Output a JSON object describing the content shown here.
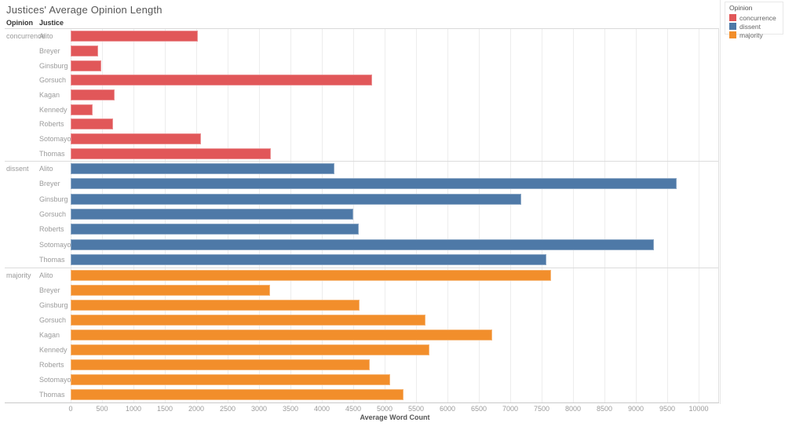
{
  "title": "Justices' Average Opinion Length",
  "row_headers": {
    "opinion": "Opinion",
    "justice": "Justice"
  },
  "legend": {
    "title": "Opinion",
    "items": [
      {
        "label": "concurrence",
        "color": "#e15759"
      },
      {
        "label": "dissent",
        "color": "#4e79a7"
      },
      {
        "label": "majority",
        "color": "#f28e2b"
      }
    ]
  },
  "axis": {
    "label": "Average Word Count",
    "ticks": [
      0,
      500,
      1000,
      1500,
      2000,
      2500,
      3000,
      3500,
      4000,
      4500,
      5000,
      5500,
      6000,
      6500,
      7000,
      7500,
      8000,
      8500,
      9000,
      9500,
      10000
    ]
  },
  "chart_data": {
    "type": "bar",
    "orientation": "horizontal",
    "title": "Justices' Average Opinion Length",
    "xlabel": "Average Word Count",
    "xlim": [
      0,
      10325
    ],
    "grid": true,
    "legend_position": "top-right",
    "series": [
      {
        "name": "concurrence",
        "color": "#e15759",
        "points": [
          {
            "justice": "Alito",
            "value": 2030
          },
          {
            "justice": "Breyer",
            "value": 440
          },
          {
            "justice": "Ginsburg",
            "value": 490
          },
          {
            "justice": "Gorsuch",
            "value": 4800
          },
          {
            "justice": "Kagan",
            "value": 700
          },
          {
            "justice": "Kennedy",
            "value": 350
          },
          {
            "justice": "Roberts",
            "value": 680
          },
          {
            "justice": "Sotomayor",
            "value": 2070
          },
          {
            "justice": "Thomas",
            "value": 3190
          }
        ]
      },
      {
        "name": "dissent",
        "color": "#4e79a7",
        "points": [
          {
            "justice": "Alito",
            "value": 4200
          },
          {
            "justice": "Breyer",
            "value": 9650
          },
          {
            "justice": "Ginsburg",
            "value": 7175
          },
          {
            "justice": "Gorsuch",
            "value": 4500
          },
          {
            "justice": "Roberts",
            "value": 4590
          },
          {
            "justice": "Sotomayor",
            "value": 9290
          },
          {
            "justice": "Thomas",
            "value": 7580
          }
        ]
      },
      {
        "name": "majority",
        "color": "#f28e2b",
        "points": [
          {
            "justice": "Alito",
            "value": 7645
          },
          {
            "justice": "Breyer",
            "value": 3180
          },
          {
            "justice": "Ginsburg",
            "value": 4595
          },
          {
            "justice": "Gorsuch",
            "value": 5645
          },
          {
            "justice": "Kagan",
            "value": 6710
          },
          {
            "justice": "Kennedy",
            "value": 5710
          },
          {
            "justice": "Roberts",
            "value": 4765
          },
          {
            "justice": "Sotomayor",
            "value": 5085
          },
          {
            "justice": "Thomas",
            "value": 5295
          }
        ]
      }
    ]
  }
}
